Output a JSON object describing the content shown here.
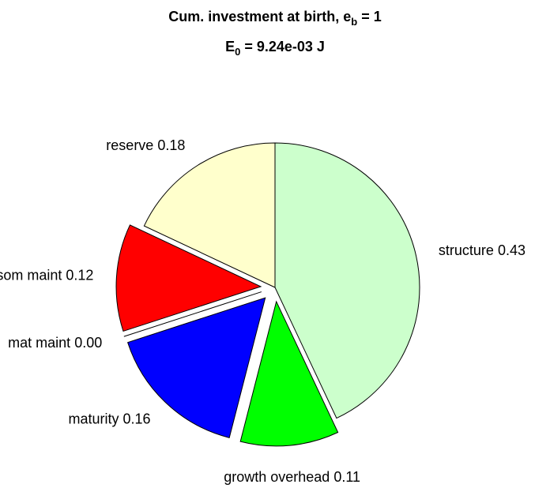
{
  "chart_data": {
    "type": "pie",
    "title": [
      "Cum. investment at birth, e",
      "b",
      " = 1"
    ],
    "subtitle": [
      "E",
      "0",
      " = 9.24e-03 J"
    ],
    "categories": [
      "structure",
      "growth overhead",
      "maturity",
      "mat maint",
      "som maint",
      "reserve"
    ],
    "values": [
      0.43,
      0.11,
      0.16,
      0.0,
      0.12,
      0.18
    ],
    "value_labels": [
      "0.43",
      "0.11",
      "0.16",
      "0.00",
      "0.12",
      "0.18"
    ],
    "colors": [
      "#ccffcc",
      "#00ff00",
      "#0000ff",
      "#ff00ff",
      "#ff0000",
      "#ffffcc"
    ],
    "explode": [
      false,
      true,
      true,
      true,
      true,
      false
    ]
  }
}
